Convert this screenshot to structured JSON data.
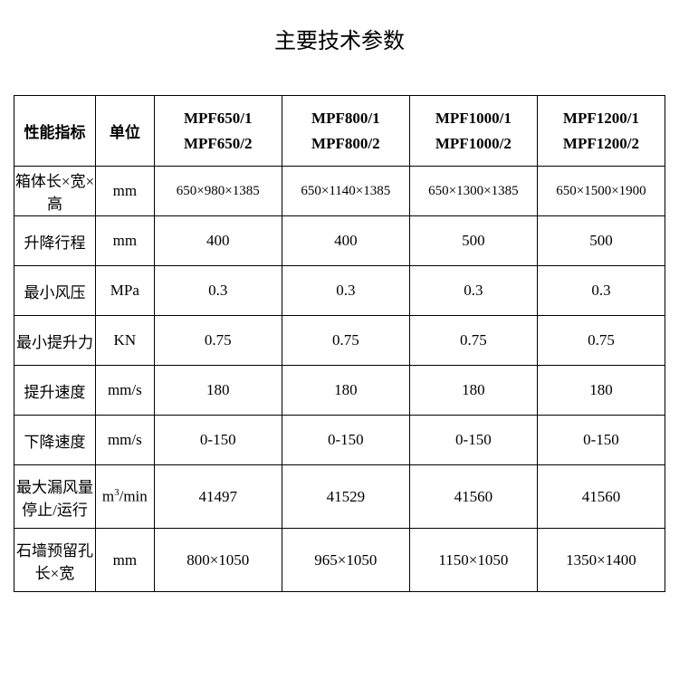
{
  "title": "主要技术参数",
  "columns": {
    "label_header": "性能指标",
    "unit_header": "单位",
    "models": [
      {
        "line1": "MPF650/1",
        "line2": "MPF650/2"
      },
      {
        "line1": "MPF800/1",
        "line2": "MPF800/2"
      },
      {
        "line1": "MPF1000/1",
        "line2": "MPF1000/2"
      },
      {
        "line1": "MPF1200/1",
        "line2": "MPF1200/2"
      }
    ]
  },
  "rows": [
    {
      "label": "箱体长×宽×高",
      "unit": "mm",
      "values": [
        "650×980×1385",
        "650×1140×1385",
        "650×1300×1385",
        "650×1500×1900"
      ],
      "small": true
    },
    {
      "label": "升降行程",
      "unit": "mm",
      "values": [
        "400",
        "400",
        "500",
        "500"
      ]
    },
    {
      "label": "最小风压",
      "unit": "MPa",
      "values": [
        "0.3",
        "0.3",
        "0.3",
        "0.3"
      ]
    },
    {
      "label": "最小提升力",
      "unit": "KN",
      "values": [
        "0.75",
        "0.75",
        "0.75",
        "0.75"
      ]
    },
    {
      "label": "提升速度",
      "unit": "mm/s",
      "values": [
        "180",
        "180",
        "180",
        "180"
      ]
    },
    {
      "label": "下降速度",
      "unit": "mm/s",
      "values": [
        "0-150",
        "0-150",
        "0-150",
        "0-150"
      ]
    },
    {
      "label": "最大漏风量停止/运行",
      "unit": "m³/min",
      "values": [
        "41497",
        "41529",
        "41560",
        "41560"
      ],
      "tall": true
    },
    {
      "label": "石墙预留孔 长×宽",
      "unit": "mm",
      "values": [
        "800×1050",
        "965×1050",
        "1150×1050",
        "1350×1400"
      ],
      "tall": true
    }
  ],
  "styling": {
    "background_color": "#ffffff",
    "border_color": "#000000",
    "text_color": "#000000",
    "title_fontsize": 24,
    "cell_fontsize": 17,
    "border_width": 1.5,
    "header_row_height": 78,
    "data_row_height": 55,
    "tall_row_height": 70
  }
}
